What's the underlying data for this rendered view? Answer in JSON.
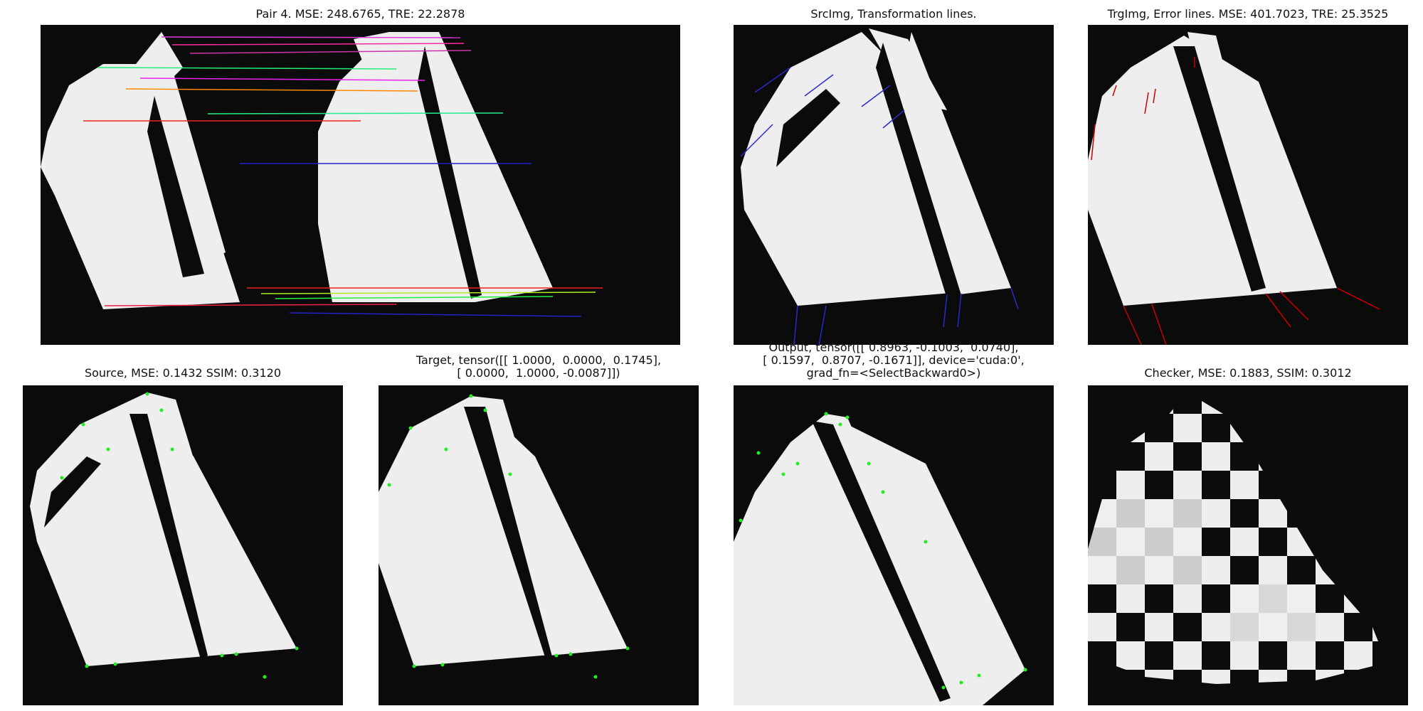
{
  "panels": {
    "pair": {
      "title": "Pair 4. MSE: 248.6765, TRE: 22.2878"
    },
    "src_lines": {
      "title": "SrcImg, Transformation lines."
    },
    "trg_errors": {
      "title": "TrgImg, Error lines. MSE: 401.7023, TRE: 25.3525"
    },
    "source": {
      "title": "Source, MSE: 0.1432 SSIM: 0.3120"
    },
    "target": {
      "title_l1": "Target, tensor([[ 1.0000,  0.0000,  0.1745],",
      "title_l2": "[ 0.0000,  1.0000, -0.0087]])"
    },
    "output": {
      "title_l1": "Output, tensor([[ 0.8963, -0.1003,  0.0740],",
      "title_l2": "[ 0.1597,  0.8707, -0.1671]], device='cuda:0',",
      "title_l3": "grad_fn=<SelectBackward0>)"
    },
    "checker": {
      "title": "Checker, MSE: 0.1883, SSIM: 0.3012"
    }
  },
  "colors": {
    "background": "#0b0b0b",
    "shape": "#eeeeee",
    "keypoint": "#22ee22",
    "error": "#cc0000",
    "transform": "#1a1acc"
  }
}
